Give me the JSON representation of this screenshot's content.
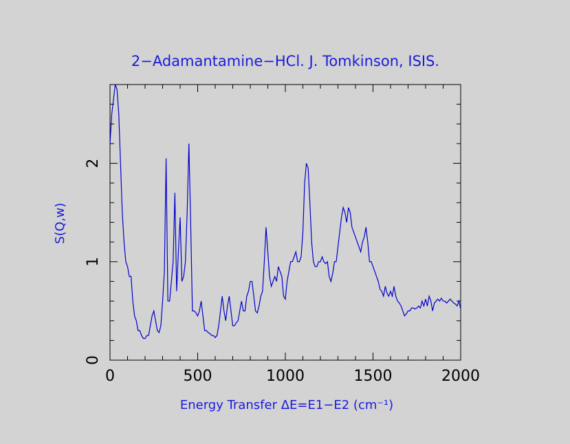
{
  "chart_data": {
    "type": "line",
    "title": "2−Adamantamine−HCl. J. Tomkinson, ISIS.",
    "x_label": "Energy Transfer ΔE=E1−E2 (cm⁻¹)",
    "y_label": "S(Q,w)",
    "xlim": [
      0,
      2000
    ],
    "xticks": [
      0,
      500,
      1000,
      1500,
      2000
    ],
    "xminorticks": [
      100,
      200,
      300,
      400,
      600,
      700,
      800,
      900,
      1100,
      1200,
      1300,
      1400,
      1600,
      1700,
      1800,
      1900
    ],
    "ylim": [
      0,
      2.8
    ],
    "yticks": [
      0,
      1,
      2
    ],
    "yminorticks": [
      0.2,
      0.4,
      0.6,
      0.8,
      1.2,
      1.4,
      1.6,
      1.8,
      2.2,
      2.4,
      2.6
    ],
    "series": [
      {
        "color": "#0000cc",
        "x": [
          0,
          10,
          20,
          30,
          40,
          50,
          60,
          70,
          80,
          90,
          100,
          110,
          120,
          130,
          140,
          150,
          160,
          170,
          180,
          190,
          200,
          210,
          220,
          230,
          240,
          250,
          260,
          270,
          280,
          290,
          300,
          310,
          320,
          330,
          340,
          350,
          360,
          370,
          380,
          390,
          400,
          410,
          420,
          430,
          440,
          450,
          460,
          470,
          480,
          490,
          500,
          510,
          520,
          530,
          540,
          550,
          560,
          570,
          580,
          590,
          600,
          610,
          620,
          630,
          640,
          650,
          660,
          670,
          680,
          690,
          700,
          710,
          720,
          730,
          740,
          750,
          760,
          770,
          780,
          790,
          800,
          810,
          820,
          830,
          840,
          850,
          860,
          870,
          880,
          890,
          900,
          910,
          920,
          930,
          940,
          950,
          960,
          970,
          980,
          990,
          1000,
          1010,
          1020,
          1030,
          1040,
          1050,
          1060,
          1070,
          1080,
          1090,
          1100,
          1110,
          1120,
          1130,
          1140,
          1150,
          1160,
          1170,
          1180,
          1190,
          1200,
          1210,
          1220,
          1230,
          1240,
          1250,
          1260,
          1270,
          1280,
          1290,
          1300,
          1310,
          1320,
          1330,
          1340,
          1350,
          1360,
          1370,
          1380,
          1390,
          1400,
          1410,
          1420,
          1430,
          1440,
          1450,
          1460,
          1470,
          1480,
          1490,
          1500,
          1510,
          1520,
          1530,
          1540,
          1550,
          1560,
          1570,
          1580,
          1590,
          1600,
          1610,
          1620,
          1630,
          1640,
          1650,
          1660,
          1670,
          1680,
          1690,
          1700,
          1710,
          1720,
          1730,
          1740,
          1750,
          1760,
          1770,
          1780,
          1790,
          1800,
          1810,
          1820,
          1830,
          1840,
          1850,
          1860,
          1870,
          1880,
          1890,
          1900,
          1910,
          1920,
          1930,
          1940,
          1950,
          1960,
          1970,
          1980,
          1990,
          2000
        ],
        "values": [
          2.2,
          2.5,
          2.65,
          2.8,
          2.75,
          2.5,
          2.0,
          1.5,
          1.2,
          1.0,
          0.95,
          0.85,
          0.85,
          0.6,
          0.45,
          0.4,
          0.3,
          0.3,
          0.25,
          0.22,
          0.22,
          0.25,
          0.25,
          0.35,
          0.45,
          0.5,
          0.4,
          0.3,
          0.28,
          0.35,
          0.6,
          0.9,
          2.05,
          0.6,
          0.6,
          0.8,
          1.0,
          1.7,
          0.7,
          1.1,
          1.45,
          0.8,
          0.85,
          1.0,
          1.5,
          2.2,
          1.4,
          0.5,
          0.5,
          0.48,
          0.45,
          0.5,
          0.6,
          0.45,
          0.3,
          0.3,
          0.28,
          0.27,
          0.25,
          0.25,
          0.23,
          0.25,
          0.35,
          0.5,
          0.65,
          0.5,
          0.4,
          0.55,
          0.65,
          0.5,
          0.35,
          0.35,
          0.38,
          0.4,
          0.5,
          0.6,
          0.5,
          0.5,
          0.65,
          0.7,
          0.8,
          0.8,
          0.65,
          0.5,
          0.48,
          0.55,
          0.65,
          0.7,
          1.0,
          1.35,
          1.1,
          0.85,
          0.75,
          0.8,
          0.85,
          0.8,
          0.95,
          0.9,
          0.85,
          0.65,
          0.62,
          0.8,
          0.9,
          1.0,
          1.0,
          1.05,
          1.1,
          1.0,
          1.0,
          1.05,
          1.3,
          1.8,
          2.0,
          1.95,
          1.6,
          1.2,
          1.0,
          0.95,
          0.95,
          1.0,
          1.0,
          1.05,
          1.0,
          0.98,
          1.0,
          0.85,
          0.8,
          0.88,
          1.0,
          1.0,
          1.15,
          1.3,
          1.45,
          1.55,
          1.5,
          1.4,
          1.55,
          1.5,
          1.35,
          1.3,
          1.25,
          1.2,
          1.15,
          1.1,
          1.2,
          1.25,
          1.35,
          1.2,
          1.0,
          1.0,
          0.95,
          0.9,
          0.85,
          0.8,
          0.72,
          0.7,
          0.65,
          0.75,
          0.68,
          0.65,
          0.7,
          0.65,
          0.75,
          0.65,
          0.6,
          0.58,
          0.55,
          0.5,
          0.45,
          0.47,
          0.5,
          0.5,
          0.53,
          0.53,
          0.52,
          0.53,
          0.55,
          0.53,
          0.6,
          0.55,
          0.62,
          0.55,
          0.65,
          0.6,
          0.5,
          0.58,
          0.6,
          0.62,
          0.6,
          0.63,
          0.6,
          0.6,
          0.58,
          0.6,
          0.62,
          0.6,
          0.58,
          0.57,
          0.55,
          0.6,
          0.52
        ]
      }
    ]
  }
}
